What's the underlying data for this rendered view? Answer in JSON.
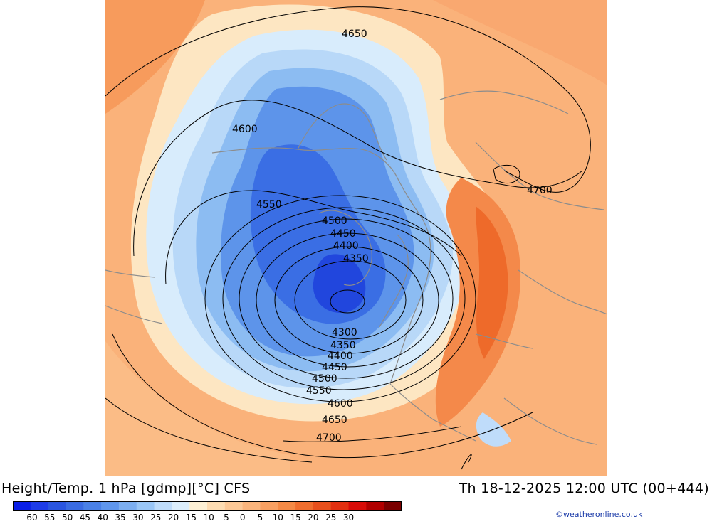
{
  "title": "Height/Temp. 1 hPa [gdmp][°C] CFS",
  "valid_time": "Th 18-12-2025 12:00 UTC (00+444)",
  "credit": "©weatheronline.co.uk",
  "colorbar": {
    "tick_labels": [
      "-60",
      "-55",
      "-50",
      "-45",
      "-40",
      "-35",
      "-30",
      "-25",
      "-20",
      "-15",
      "-10",
      "-5",
      "0",
      "5",
      "10",
      "15",
      "20",
      "25",
      "30"
    ],
    "colors": [
      "#0a1ee6",
      "#1e3ce8",
      "#2a55e0",
      "#3a6be2",
      "#4a80e6",
      "#5f96ec",
      "#7caef0",
      "#9ac6f6",
      "#bfdcfa",
      "#dceefc",
      "#fdf0d4",
      "#fddcb2",
      "#fcc896",
      "#fab47c",
      "#f8a062",
      "#f48a46",
      "#f06e2e",
      "#e8501c",
      "#e23010",
      "#d80c08",
      "#b00000",
      "#7a0000"
    ]
  },
  "contour_labels": [
    {
      "id": "c4650-top",
      "text": "4650"
    },
    {
      "id": "c4600-left",
      "text": "4600"
    },
    {
      "id": "c4550-left",
      "text": "4550"
    },
    {
      "id": "c4500-mid",
      "text": "4500"
    },
    {
      "id": "c4450-mid",
      "text": "4450"
    },
    {
      "id": "c4400-mid",
      "text": "4400"
    },
    {
      "id": "c4350-mid",
      "text": "4350"
    },
    {
      "id": "c4700-right",
      "text": "4700"
    },
    {
      "id": "c4300-low",
      "text": "4300"
    },
    {
      "id": "c4350-low",
      "text": "4350"
    },
    {
      "id": "c4400-low",
      "text": "4400"
    },
    {
      "id": "c4450-low",
      "text": "4450"
    },
    {
      "id": "c4500-low",
      "text": "4500"
    },
    {
      "id": "c4550-low",
      "text": "4550"
    },
    {
      "id": "c4600-low",
      "text": "4600"
    },
    {
      "id": "c4650-low",
      "text": "4650"
    },
    {
      "id": "c4700-low",
      "text": "4700"
    }
  ]
}
